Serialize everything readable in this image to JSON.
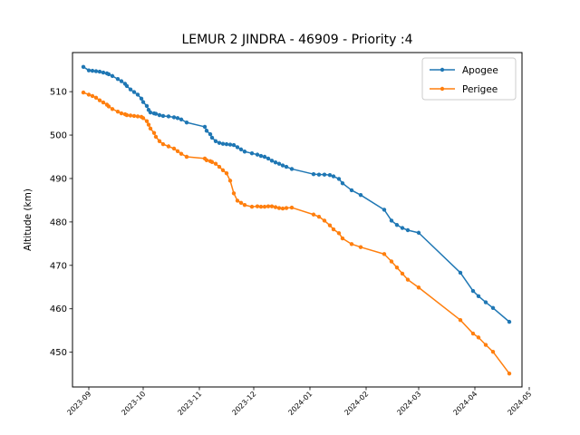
{
  "chart_data": {
    "type": "line",
    "title": "LEMUR 2 JINDRA - 46909 - Priority :4",
    "xlabel": "",
    "ylabel": "Altitude (km)",
    "ylim": [
      442,
      519
    ],
    "xlim": [
      "2023-08-23",
      "2024-04-27"
    ],
    "yticks": [
      450,
      460,
      470,
      480,
      490,
      500,
      510
    ],
    "xticks": [
      "2023-09",
      "2023-10",
      "2023-11",
      "2023-12",
      "2024-01",
      "2024-02",
      "2024-03",
      "2024-04",
      "2024-05"
    ],
    "legend": {
      "placement": "top-right"
    },
    "grid": false,
    "series": [
      {
        "name": "Apogee",
        "color": "#1f77b4",
        "x": [
          "2023-08-29",
          "2023-09-01",
          "2023-09-03",
          "2023-09-05",
          "2023-09-07",
          "2023-09-09",
          "2023-09-11",
          "2023-09-12",
          "2023-09-14",
          "2023-09-17",
          "2023-09-19",
          "2023-09-21",
          "2023-09-22",
          "2023-09-24",
          "2023-09-26",
          "2023-09-28",
          "2023-09-30",
          "2023-10-01",
          "2023-10-03",
          "2023-10-04",
          "2023-10-05",
          "2023-10-07",
          "2023-10-08",
          "2023-10-10",
          "2023-10-12",
          "2023-10-15",
          "2023-10-18",
          "2023-10-20",
          "2023-10-22",
          "2023-10-25",
          "2023-11-04",
          "2023-11-05",
          "2023-11-07",
          "2023-11-08",
          "2023-11-10",
          "2023-11-12",
          "2023-11-14",
          "2023-11-16",
          "2023-11-18",
          "2023-11-20",
          "2023-11-22",
          "2023-11-24",
          "2023-11-26",
          "2023-11-30",
          "2023-12-03",
          "2023-12-05",
          "2023-12-07",
          "2023-12-09",
          "2023-12-11",
          "2023-12-13",
          "2023-12-15",
          "2023-12-17",
          "2023-12-19",
          "2023-12-22",
          "2024-01-03",
          "2024-01-06",
          "2024-01-09",
          "2024-01-12",
          "2024-01-14",
          "2024-01-17",
          "2024-01-19",
          "2024-01-24",
          "2024-01-29",
          "2024-02-11",
          "2024-02-15",
          "2024-02-18",
          "2024-02-21",
          "2024-02-24",
          "2024-03-01",
          "2024-03-24",
          "2024-03-31",
          "2024-04-03",
          "2024-04-07",
          "2024-04-11",
          "2024-04-20"
        ],
        "y": [
          515.7,
          514.9,
          514.8,
          514.7,
          514.6,
          514.4,
          514.2,
          514.0,
          513.6,
          512.9,
          512.4,
          511.8,
          511.3,
          510.5,
          509.9,
          509.3,
          508.4,
          507.6,
          506.7,
          505.8,
          505.2,
          505.0,
          504.9,
          504.6,
          504.4,
          504.3,
          504.1,
          503.9,
          503.6,
          502.9,
          501.9,
          501.0,
          500.2,
          499.4,
          498.6,
          498.2,
          498.0,
          497.9,
          497.8,
          497.7,
          497.2,
          496.7,
          496.2,
          495.8,
          495.5,
          495.2,
          495.0,
          494.6,
          494.1,
          493.7,
          493.4,
          493.0,
          492.7,
          492.2,
          491.0,
          490.9,
          490.9,
          490.8,
          490.5,
          489.9,
          488.9,
          487.3,
          486.2,
          482.8,
          480.3,
          479.3,
          478.6,
          478.1,
          477.5,
          468.3,
          464.1,
          462.9,
          461.5,
          460.2,
          457.0
        ]
      },
      {
        "name": "Perigee",
        "color": "#ff7f0e",
        "x": [
          "2023-08-29",
          "2023-09-01",
          "2023-09-03",
          "2023-09-05",
          "2023-09-07",
          "2023-09-09",
          "2023-09-11",
          "2023-09-12",
          "2023-09-14",
          "2023-09-17",
          "2023-09-19",
          "2023-09-21",
          "2023-09-22",
          "2023-09-24",
          "2023-09-26",
          "2023-09-28",
          "2023-09-30",
          "2023-10-01",
          "2023-10-03",
          "2023-10-04",
          "2023-10-05",
          "2023-10-07",
          "2023-10-08",
          "2023-10-10",
          "2023-10-12",
          "2023-10-15",
          "2023-10-18",
          "2023-10-20",
          "2023-10-22",
          "2023-10-25",
          "2023-11-04",
          "2023-11-05",
          "2023-11-07",
          "2023-11-08",
          "2023-11-10",
          "2023-11-12",
          "2023-11-14",
          "2023-11-16",
          "2023-11-18",
          "2023-11-20",
          "2023-11-22",
          "2023-11-24",
          "2023-11-26",
          "2023-11-30",
          "2023-12-03",
          "2023-12-05",
          "2023-12-07",
          "2023-12-09",
          "2023-12-11",
          "2023-12-13",
          "2023-12-15",
          "2023-12-17",
          "2023-12-19",
          "2023-12-22",
          "2024-01-03",
          "2024-01-06",
          "2024-01-09",
          "2024-01-12",
          "2024-01-14",
          "2024-01-17",
          "2024-01-19",
          "2024-01-24",
          "2024-01-29",
          "2024-02-11",
          "2024-02-15",
          "2024-02-18",
          "2024-02-21",
          "2024-02-24",
          "2024-03-01",
          "2024-03-24",
          "2024-03-31",
          "2024-04-03",
          "2024-04-07",
          "2024-04-11",
          "2024-04-20"
        ],
        "y": [
          509.8,
          509.3,
          509.0,
          508.6,
          508.0,
          507.5,
          507.0,
          506.6,
          506.0,
          505.4,
          505.0,
          504.8,
          504.6,
          504.5,
          504.4,
          504.3,
          504.2,
          503.9,
          503.2,
          502.4,
          501.5,
          500.5,
          499.6,
          498.6,
          497.9,
          497.4,
          496.9,
          496.3,
          495.7,
          495.0,
          494.6,
          494.2,
          494.0,
          493.8,
          493.4,
          492.7,
          491.9,
          491.2,
          489.5,
          486.6,
          484.9,
          484.4,
          483.9,
          483.5,
          483.6,
          483.5,
          483.5,
          483.6,
          483.6,
          483.4,
          483.2,
          483.1,
          483.2,
          483.3,
          481.7,
          481.2,
          480.3,
          479.2,
          478.3,
          477.4,
          476.2,
          474.9,
          474.2,
          472.6,
          470.9,
          469.5,
          468.1,
          466.7,
          464.9,
          457.4,
          454.3,
          453.4,
          451.7,
          450.1,
          445.1
        ]
      }
    ]
  }
}
